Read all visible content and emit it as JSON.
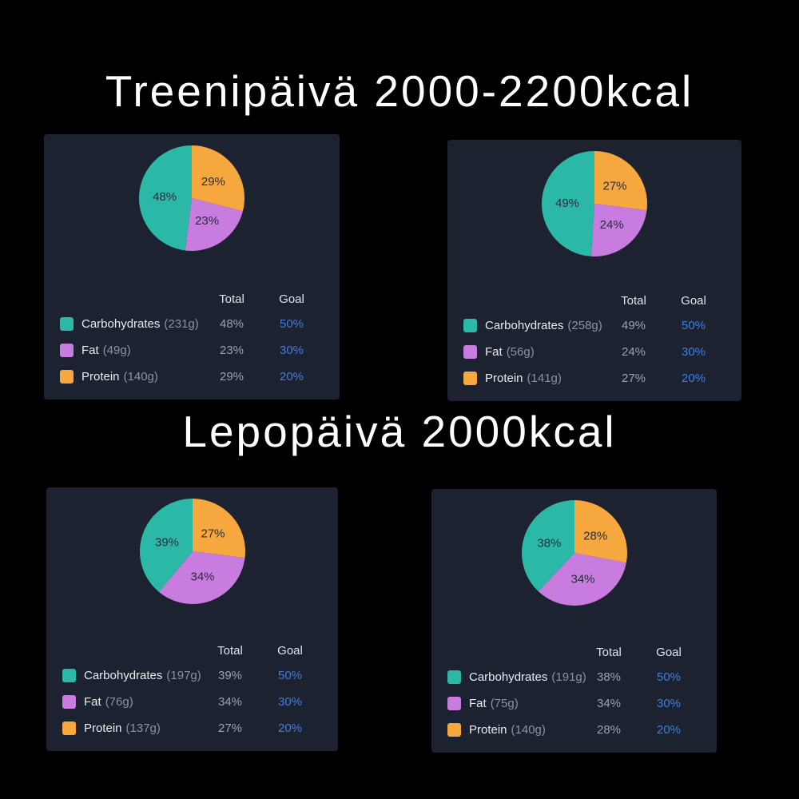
{
  "titles": {
    "training": "Treenipäivä 2000-2200kcal",
    "rest": "Lepopäivä 2000kcal"
  },
  "table": {
    "total": "Total",
    "goal": "Goal"
  },
  "colors": {
    "page_bg": "#000000",
    "card_bg": "#1d2231",
    "carbs": "#2bb8a7",
    "fat": "#c87cdf",
    "protein": "#f6a73e",
    "goal_text": "#3d7ee3",
    "total_text": "#9aa2b2",
    "name_text": "#e9ecf2",
    "grams_text": "#8b92a3",
    "header_text": "#dfe3ec",
    "pie_label_text": "#272c3d"
  },
  "chart_data": [
    {
      "type": "pie",
      "group": "Treenipäivä 2000-2200kcal",
      "legend_position": "bottom-table",
      "labels": "percent-inside",
      "slice_order_clockwise_from_top": [
        "Protein",
        "Fat",
        "Carbohydrates"
      ],
      "rows": [
        {
          "name": "Carbohydrates",
          "grams_display": "(231g)",
          "value": 48,
          "total": "48%",
          "goal": "50%",
          "color": "#2bb8a7"
        },
        {
          "name": "Fat",
          "grams_display": "(49g)",
          "value": 23,
          "total": "23%",
          "goal": "30%",
          "color": "#c87cdf"
        },
        {
          "name": "Protein",
          "grams_display": "(140g)",
          "value": 29,
          "total": "29%",
          "goal": "20%",
          "color": "#f6a73e"
        }
      ]
    },
    {
      "type": "pie",
      "group": "Treenipäivä 2000-2200kcal",
      "legend_position": "bottom-table",
      "labels": "percent-inside",
      "slice_order_clockwise_from_top": [
        "Protein",
        "Fat",
        "Carbohydrates"
      ],
      "rows": [
        {
          "name": "Carbohydrates",
          "grams_display": "(258g)",
          "value": 49,
          "total": "49%",
          "goal": "50%",
          "color": "#2bb8a7"
        },
        {
          "name": "Fat",
          "grams_display": "(56g)",
          "value": 24,
          "total": "24%",
          "goal": "30%",
          "color": "#c87cdf"
        },
        {
          "name": "Protein",
          "grams_display": "(141g)",
          "value": 27,
          "total": "27%",
          "goal": "20%",
          "color": "#f6a73e"
        }
      ]
    },
    {
      "type": "pie",
      "group": "Lepopäivä 2000kcal",
      "legend_position": "bottom-table",
      "labels": "percent-inside",
      "slice_order_clockwise_from_top": [
        "Protein",
        "Fat",
        "Carbohydrates"
      ],
      "rows": [
        {
          "name": "Carbohydrates",
          "grams_display": "(197g)",
          "value": 39,
          "total": "39%",
          "goal": "50%",
          "color": "#2bb8a7"
        },
        {
          "name": "Fat",
          "grams_display": "(76g)",
          "value": 34,
          "total": "34%",
          "goal": "30%",
          "color": "#c87cdf"
        },
        {
          "name": "Protein",
          "grams_display": "(137g)",
          "value": 27,
          "total": "27%",
          "goal": "20%",
          "color": "#f6a73e"
        }
      ]
    },
    {
      "type": "pie",
      "group": "Lepopäivä 2000kcal",
      "legend_position": "bottom-table",
      "labels": "percent-inside",
      "slice_order_clockwise_from_top": [
        "Protein",
        "Fat",
        "Carbohydrates"
      ],
      "rows": [
        {
          "name": "Carbohydrates",
          "grams_display": "(191g)",
          "value": 38,
          "total": "38%",
          "goal": "50%",
          "color": "#2bb8a7"
        },
        {
          "name": "Fat",
          "grams_display": "(75g)",
          "value": 34,
          "total": "34%",
          "goal": "30%",
          "color": "#c87cdf"
        },
        {
          "name": "Protein",
          "grams_display": "(140g)",
          "value": 28,
          "total": "28%",
          "goal": "20%",
          "color": "#f6a73e"
        }
      ]
    }
  ]
}
